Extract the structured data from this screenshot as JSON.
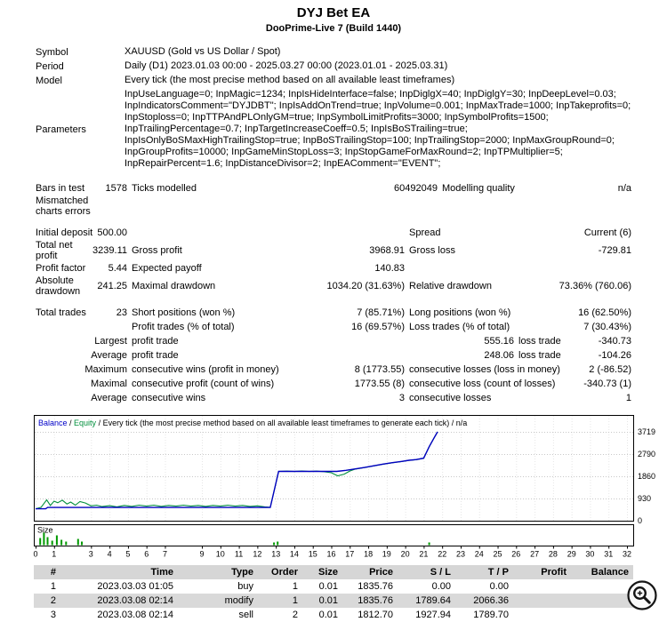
{
  "report": {
    "title": "DYJ Bet EA",
    "subtitle": "DooPrime-Live 7 (Build 1440)",
    "info": {
      "symbol_label": "Symbol",
      "symbol": "XAUUSD (Gold vs US Dollar / Spot)",
      "period_label": "Period",
      "period": "Daily (D1) 2023.01.03 00:00 - 2025.03.27 00:00 (2023.01.01 - 2025.03.31)",
      "model_label": "Model",
      "model": "Every tick (the most precise method based on all available least timeframes)",
      "parameters_label": "Parameters",
      "parameters": "InpUseLanguage=0; InpMagic=1234; InpIsHideInterface=false; InpDiglgX=40; InpDiglgY=30; InpDeepLevel=0.03; InpIndicatorsComment=\"DYJDBT\"; InpIsAddOnTrend=true; InpVolume=0.001; InpMaxTrade=1000; InpTakeprofits=0; InpStoploss=0; InpTTPAndPLOnlyGM=true; InpSymbolLimitProfits=3000; InpSymbolProfits=1500; InpTrailingPercentage=0.7; InpTargetIncreaseCoeff=0.5; InpIsBoSTrailing=true; InpIsOnlyBoSMaxHighTrailingStop=true; InpBoSTrailingStop=100; InpTrailingStop=2000; InpMaxGroupRound=0; InpGroupProfits=10000; InpGameMinStopLoss=3; InpStopGameForMaxRound=2; InpTPMultiplier=5; InpRepairPercent=1.6; InpDistanceDivisor=2; InpEAComment=\"EVENT\";"
    },
    "stats": {
      "bars_label": "Bars in test",
      "bars": "1578",
      "ticks_label": "Ticks modelled",
      "ticks": "60492049",
      "quality_label": "Modelling quality",
      "quality": "n/a",
      "mismatch_label": "Mismatched charts errors",
      "deposit_label": "Initial deposit",
      "deposit": "500.00",
      "spread_label": "Spread",
      "spread_value": "Current (6)",
      "netprofit_label": "Total net profit",
      "netprofit": "3239.11",
      "grossprofit_label": "Gross profit",
      "grossprofit": "3968.91",
      "grossloss_label": "Gross loss",
      "grossloss": "-729.81",
      "pf_label": "Profit factor",
      "pf": "5.44",
      "payoff_label": "Expected payoff",
      "payoff": "140.83",
      "absdd_label": "Absolute drawdown",
      "absdd": "241.25",
      "maxdd_label": "Maximal drawdown",
      "maxdd": "1034.20 (31.63%)",
      "reldd_label": "Relative drawdown",
      "reldd": "73.36% (760.06)",
      "trades_label": "Total trades",
      "trades": "23",
      "short_label": "Short positions (won %)",
      "short": "7 (85.71%)",
      "long_label": "Long positions (won %)",
      "long": "16 (62.50%)",
      "profittrades_label": "Profit trades (% of total)",
      "profittrades": "16 (69.57%)",
      "losstrades_label": "Loss trades (% of total)",
      "losstrades": "7 (30.43%)",
      "largest_label": "Largest",
      "largest_profit_label": "profit trade",
      "largest_profit": "555.16",
      "largest_loss_label": "loss trade",
      "largest_loss": "-340.73",
      "average_label": "Average",
      "avg_profit_label": "profit trade",
      "avg_profit": "248.06",
      "avg_loss_label": "loss trade",
      "avg_loss": "-104.26",
      "maximum_label": "Maximum",
      "maxwins_label": "consecutive wins (profit in money)",
      "maxwins": "8 (1773.55)",
      "maxlosses_label": "consecutive losses (loss in money)",
      "maxlosses": "2 (-86.52)",
      "maximal_label": "Maximal",
      "maxprofit_label": "consecutive profit (count of wins)",
      "maxprofit": "1773.55 (8)",
      "maxloss_label": "consecutive loss (count of losses)",
      "maxloss": "-340.73 (1)",
      "avgcons_label": "Average",
      "avgwins_label": "consecutive wins",
      "avgwins": "3",
      "avglosses_label": "consecutive losses",
      "avglosses": "1"
    }
  },
  "chart_data": {
    "type": "line",
    "legend": {
      "balance": "Balance",
      "sep": " / ",
      "equity": "Equity",
      "rest": " / Every tick (the most precise method based on all available least timeframes to generate each tick) / n/a"
    },
    "x_range": [
      0,
      32
    ],
    "y_range": [
      0,
      4390
    ],
    "y_ticks": [
      3719,
      2790,
      1860,
      930,
      0
    ],
    "x_ticks": [
      0,
      1,
      3,
      4,
      5,
      6,
      7,
      9,
      10,
      11,
      12,
      13,
      14,
      15,
      16,
      17,
      18,
      19,
      20,
      21,
      22,
      23,
      24,
      25,
      26,
      27,
      28,
      29,
      30,
      31,
      32
    ],
    "grid": true,
    "legend_position": "top-left",
    "series": [
      {
        "name": "Equity",
        "color": "#008f3c",
        "points": [
          [
            0,
            500
          ],
          [
            0.3,
            560
          ],
          [
            0.6,
            870
          ],
          [
            0.8,
            640
          ],
          [
            1.0,
            820
          ],
          [
            1.2,
            750
          ],
          [
            1.45,
            860
          ],
          [
            1.7,
            700
          ],
          [
            1.9,
            780
          ],
          [
            2.15,
            650
          ],
          [
            2.4,
            800
          ],
          [
            2.7,
            740
          ],
          [
            3.0,
            620
          ],
          [
            3.3,
            650
          ],
          [
            3.6,
            590
          ],
          [
            4.0,
            630
          ],
          [
            4.4,
            580
          ],
          [
            4.8,
            640
          ],
          [
            5.2,
            600
          ],
          [
            5.6,
            650
          ],
          [
            6.0,
            610
          ],
          [
            6.4,
            650
          ],
          [
            6.8,
            600
          ],
          [
            7.2,
            640
          ],
          [
            7.6,
            610
          ],
          [
            8.0,
            650
          ],
          [
            8.4,
            610
          ],
          [
            8.8,
            640
          ],
          [
            9.2,
            600
          ],
          [
            9.6,
            640
          ],
          [
            10.0,
            610
          ],
          [
            10.4,
            650
          ],
          [
            10.8,
            610
          ],
          [
            11.2,
            640
          ],
          [
            11.6,
            600
          ],
          [
            12.0,
            620
          ],
          [
            12.4,
            580
          ],
          [
            12.7,
            560
          ],
          [
            13.15,
            2066
          ],
          [
            13.6,
            2075
          ],
          [
            14.0,
            2060
          ],
          [
            14.4,
            2080
          ],
          [
            14.8,
            2060
          ],
          [
            15.2,
            2075
          ],
          [
            15.6,
            2055
          ],
          [
            16.0,
            2010
          ],
          [
            16.35,
            1880
          ],
          [
            16.7,
            1950
          ],
          [
            17.0,
            2080
          ],
          [
            17.3,
            2160
          ],
          [
            17.8,
            2225
          ],
          [
            18.3,
            2295
          ],
          [
            18.8,
            2365
          ],
          [
            19.3,
            2425
          ],
          [
            19.8,
            2475
          ],
          [
            20.2,
            2525
          ],
          [
            20.6,
            2555
          ],
          [
            21.0,
            2615
          ],
          [
            21.3,
            3090
          ],
          [
            21.55,
            3445
          ],
          [
            21.75,
            3719
          ]
        ]
      },
      {
        "name": "Balance",
        "color": "#0000c0",
        "points": [
          [
            0,
            500
          ],
          [
            0.55,
            500
          ],
          [
            0.65,
            555
          ],
          [
            12.7,
            555
          ],
          [
            13.15,
            2066
          ],
          [
            16.3,
            2066
          ],
          [
            16.8,
            2110
          ],
          [
            17.3,
            2170
          ],
          [
            17.8,
            2230
          ],
          [
            18.3,
            2300
          ],
          [
            18.8,
            2370
          ],
          [
            19.3,
            2430
          ],
          [
            19.8,
            2480
          ],
          [
            20.2,
            2530
          ],
          [
            20.6,
            2560
          ],
          [
            21.0,
            2620
          ],
          [
            21.3,
            3100
          ],
          [
            21.55,
            3450
          ],
          [
            21.75,
            3719
          ]
        ]
      }
    ],
    "size_panel": {
      "label": "Size",
      "color": "#009900",
      "bars": [
        [
          0.25,
          8
        ],
        [
          0.45,
          14
        ],
        [
          0.65,
          9
        ],
        [
          0.9,
          5
        ],
        [
          1.15,
          11
        ],
        [
          1.4,
          6
        ],
        [
          1.65,
          4
        ],
        [
          2.3,
          7
        ],
        [
          2.5,
          4
        ],
        [
          12.9,
          3
        ],
        [
          13.1,
          4
        ],
        [
          21.3,
          3
        ]
      ]
    }
  },
  "trades": {
    "headers": [
      "#",
      "Time",
      "Type",
      "Order",
      "Size",
      "Price",
      "S / L",
      "T / P",
      "Profit",
      "Balance"
    ],
    "selected_row_index": 1,
    "rows": [
      [
        "1",
        "2023.03.03 01:05",
        "buy",
        "1",
        "0.01",
        "1835.76",
        "0.00",
        "0.00",
        "",
        ""
      ],
      [
        "2",
        "2023.03.08 02:14",
        "modify",
        "1",
        "0.01",
        "1835.76",
        "1789.64",
        "2066.36",
        "",
        ""
      ],
      [
        "3",
        "2023.03.08 02:14",
        "sell",
        "2",
        "0.01",
        "1812.70",
        "1927.94",
        "1789.70",
        "",
        ""
      ]
    ]
  },
  "zoom_button": {
    "name": "zoom"
  }
}
